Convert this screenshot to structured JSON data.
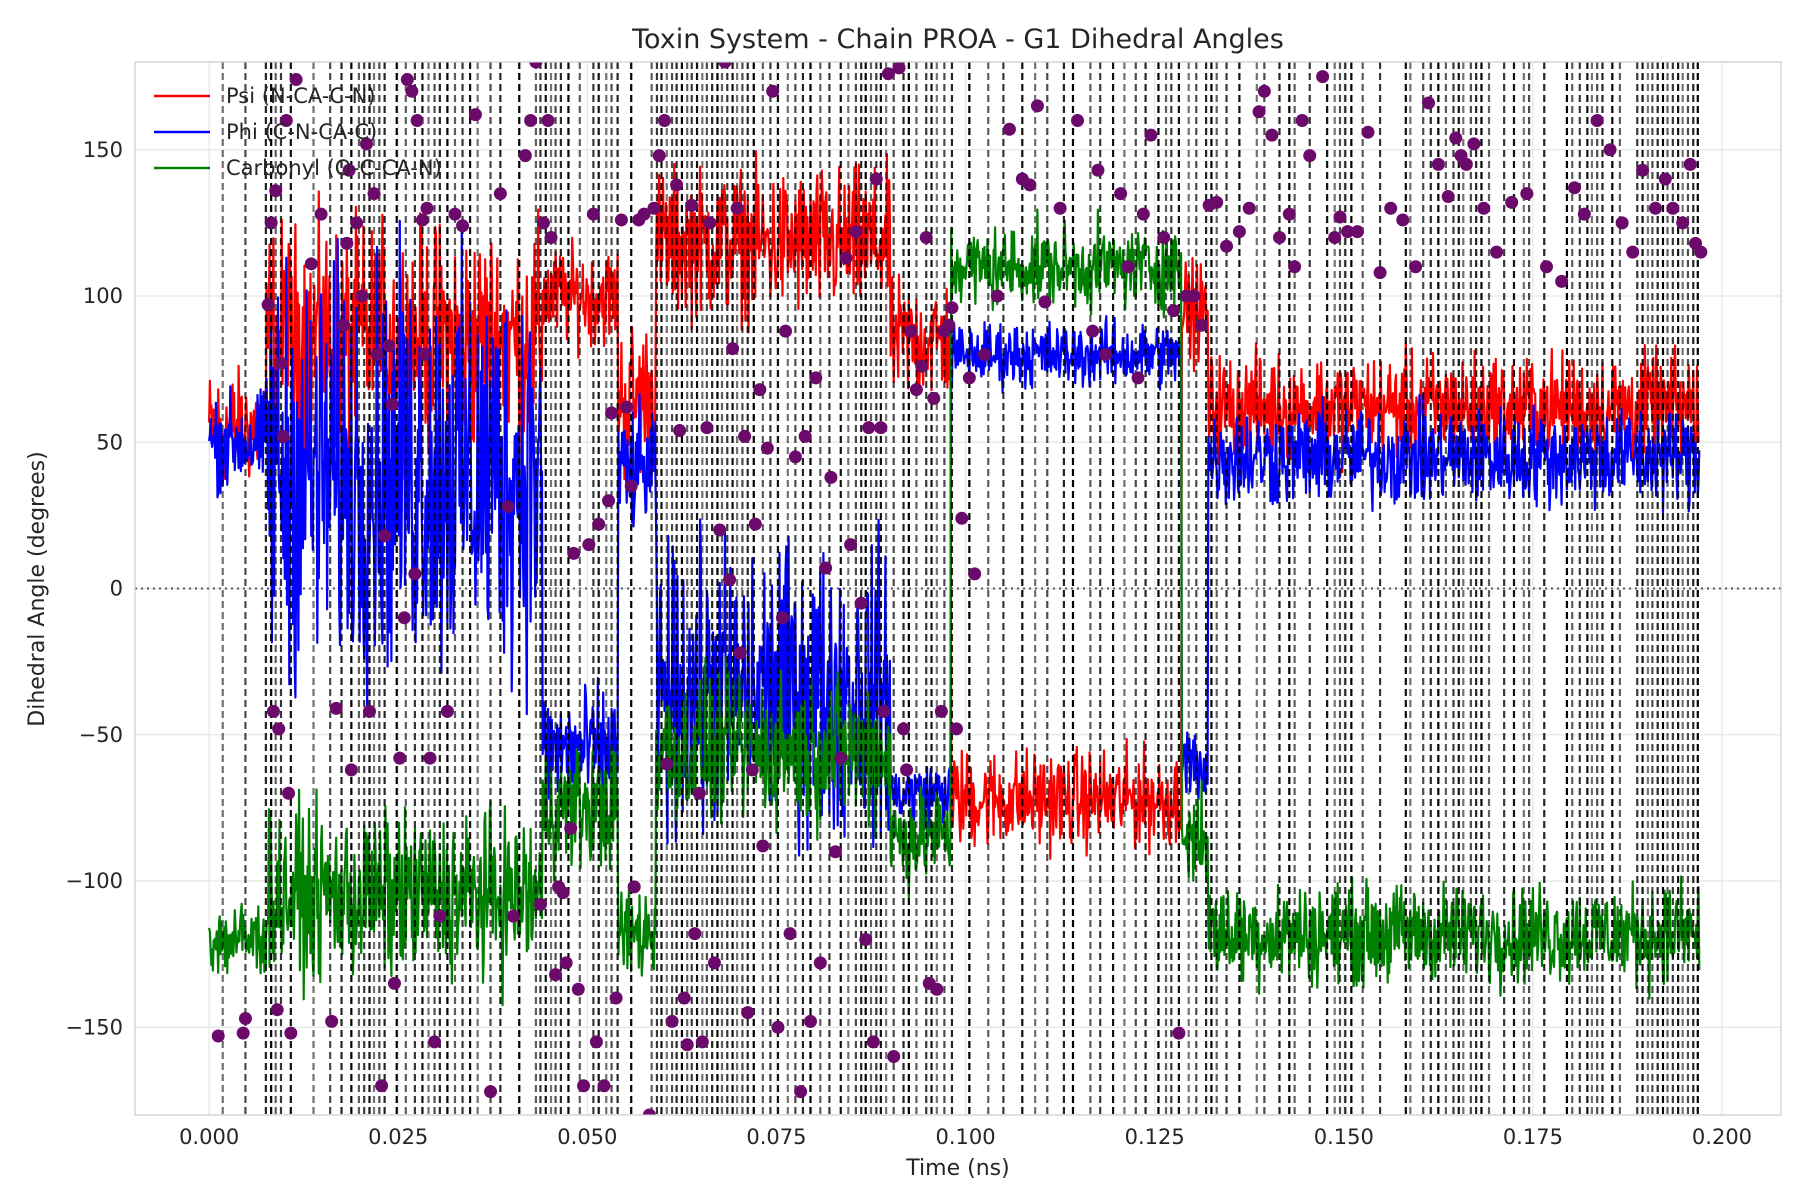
{
  "chart_data": {
    "type": "line",
    "title": "Toxin System - Chain PROA - G1 Dihedral Angles",
    "xlabel": "Time (ns)",
    "ylabel": "Dihedral Angle (degrees)",
    "xlim": [
      -0.0098,
      0.2078
    ],
    "ylim": [
      -180,
      180
    ],
    "xticks": [
      0.0,
      0.025,
      0.05,
      0.075,
      0.1,
      0.125,
      0.15,
      0.175,
      0.2
    ],
    "xtick_labels": [
      "0.000",
      "0.025",
      "0.050",
      "0.075",
      "0.100",
      "0.125",
      "0.150",
      "0.175",
      "0.200"
    ],
    "yticks": [
      -150,
      -100,
      -50,
      0,
      50,
      100,
      150
    ],
    "ytick_labels": [
      "−150",
      "−100",
      "−50",
      "0",
      "50",
      "100",
      "150"
    ],
    "grid": true,
    "legend_position": "top-left",
    "reference_line": {
      "y": 0,
      "style": "dotted",
      "color": "#555555"
    },
    "colors": {
      "psi": "#ff0000",
      "phi": "#0000ff",
      "carbonyl": "#008000",
      "markers": "#6b0a6b",
      "vlines": "#000000"
    },
    "series": [
      {
        "name": "Psi (N-CA-C-N)",
        "color": "#ff0000",
        "segments": [
          {
            "x": [
              0.0,
              0.0075
            ],
            "mean": 55,
            "noise": 14
          },
          {
            "x": [
              0.0075,
              0.044
            ],
            "mean": 85,
            "noise": 28
          },
          {
            "x": [
              0.044,
              0.054
            ],
            "mean": 100,
            "noise": 12
          },
          {
            "x": [
              0.054,
              0.059
            ],
            "mean": 65,
            "noise": 20
          },
          {
            "x": [
              0.059,
              0.09
            ],
            "mean": 118,
            "noise": 18
          },
          {
            "x": [
              0.09,
              0.098
            ],
            "mean": 85,
            "noise": 15
          },
          {
            "x": [
              0.098,
              0.1285
            ],
            "mean": -72,
            "noise": 12
          },
          {
            "x": [
              0.1285,
              0.132
            ],
            "mean": 95,
            "noise": 12
          },
          {
            "x": [
              0.132,
              0.197
            ],
            "mean": 62,
            "noise": 13
          }
        ]
      },
      {
        "name": "Phi (C-N-CA-C)",
        "color": "#0000ff",
        "segments": [
          {
            "x": [
              0.0,
              0.0075
            ],
            "mean": 50,
            "noise": 12
          },
          {
            "x": [
              0.0075,
              0.044
            ],
            "mean": 40,
            "noise": 50
          },
          {
            "x": [
              0.044,
              0.054
            ],
            "mean": -55,
            "noise": 15
          },
          {
            "x": [
              0.054,
              0.059
            ],
            "mean": 40,
            "noise": 15
          },
          {
            "x": [
              0.059,
              0.09
            ],
            "mean": -35,
            "noise": 35
          },
          {
            "x": [
              0.09,
              0.098
            ],
            "mean": -70,
            "noise": 8
          },
          {
            "x": [
              0.098,
              0.1285
            ],
            "mean": 80,
            "noise": 8
          },
          {
            "x": [
              0.1285,
              0.132
            ],
            "mean": -60,
            "noise": 10
          },
          {
            "x": [
              0.132,
              0.197
            ],
            "mean": 45,
            "noise": 12
          }
        ]
      },
      {
        "name": "Carbonyl (O-C-CA-N)",
        "color": "#008000",
        "segments": [
          {
            "x": [
              0.0,
              0.0075
            ],
            "mean": -120,
            "noise": 10
          },
          {
            "x": [
              0.0075,
              0.044
            ],
            "mean": -105,
            "noise": 20
          },
          {
            "x": [
              0.044,
              0.054
            ],
            "mean": -75,
            "noise": 15
          },
          {
            "x": [
              0.054,
              0.059
            ],
            "mean": -118,
            "noise": 12
          },
          {
            "x": [
              0.059,
              0.09
            ],
            "mean": -55,
            "noise": 18
          },
          {
            "x": [
              0.09,
              0.098
            ],
            "mean": -85,
            "noise": 12
          },
          {
            "x": [
              0.098,
              0.1285
            ],
            "mean": 110,
            "noise": 10
          },
          {
            "x": [
              0.1285,
              0.132
            ],
            "mean": -85,
            "noise": 12
          },
          {
            "x": [
              0.132,
              0.197
            ],
            "mean": -118,
            "noise": 12
          }
        ]
      }
    ],
    "transition_lines": [
      0.0018,
      0.0048,
      0.0075,
      0.0082,
      0.0088,
      0.0095,
      0.0108,
      0.0138,
      0.016,
      0.0175,
      0.0188,
      0.0198,
      0.0205,
      0.0212,
      0.0218,
      0.0225,
      0.0232,
      0.0248,
      0.026,
      0.0272,
      0.0282,
      0.029,
      0.0298,
      0.0305,
      0.0315,
      0.0325,
      0.0335,
      0.0345,
      0.0355,
      0.0372,
      0.0385,
      0.041,
      0.0432,
      0.0438,
      0.0445,
      0.0452,
      0.0458,
      0.0465,
      0.0475,
      0.049,
      0.0508,
      0.0515,
      0.0525,
      0.0532,
      0.054,
      0.0558,
      0.0585,
      0.0592,
      0.0598,
      0.0605,
      0.0612,
      0.0618,
      0.0625,
      0.0632,
      0.0638,
      0.0645,
      0.0652,
      0.0658,
      0.0665,
      0.0672,
      0.0678,
      0.0685,
      0.0692,
      0.0698,
      0.0705,
      0.0712,
      0.072,
      0.0732,
      0.0742,
      0.0752,
      0.0765,
      0.0775,
      0.0785,
      0.0795,
      0.0808,
      0.082,
      0.0835,
      0.0845,
      0.0855,
      0.0862,
      0.0868,
      0.0875,
      0.0882,
      0.0888,
      0.0895,
      0.0905,
      0.0918,
      0.0925,
      0.0935,
      0.0948,
      0.0955,
      0.0962,
      0.0972,
      0.0982,
      0.1005,
      0.103,
      0.105,
      0.1075,
      0.1092,
      0.1108,
      0.113,
      0.1142,
      0.1165,
      0.1178,
      0.1195,
      0.121,
      0.1225,
      0.1238,
      0.1255,
      0.1265,
      0.1272,
      0.1282,
      0.1295,
      0.1305,
      0.1318,
      0.1325,
      0.1332,
      0.1345,
      0.1362,
      0.1385,
      0.1395,
      0.1415,
      0.1428,
      0.1435,
      0.1455,
      0.1478,
      0.1488,
      0.1495,
      0.1502,
      0.151,
      0.1525,
      0.1548,
      0.1582,
      0.1588,
      0.1605,
      0.1615,
      0.1625,
      0.1635,
      0.1645,
      0.1652,
      0.1658,
      0.1668,
      0.1675,
      0.1682,
      0.1692,
      0.1712,
      0.1725,
      0.1738,
      0.1745,
      0.1765,
      0.1795,
      0.1802,
      0.1812,
      0.1822,
      0.1828,
      0.1835,
      0.1842,
      0.1855,
      0.1865,
      0.1888,
      0.1895,
      0.1902,
      0.1908,
      0.1915,
      0.1922,
      0.1928,
      0.1935,
      0.1942,
      0.1948,
      0.1955,
      0.1962,
      0.1968
    ],
    "transition_points": [
      [
        0.0012,
        -153
      ],
      [
        0.0045,
        -152
      ],
      [
        0.0048,
        -147
      ],
      [
        0.0078,
        97
      ],
      [
        0.0082,
        125
      ],
      [
        0.0085,
        -42
      ],
      [
        0.0088,
        136
      ],
      [
        0.009,
        -144
      ],
      [
        0.0092,
        -48
      ],
      [
        0.0095,
        77
      ],
      [
        0.0098,
        52
      ],
      [
        0.0102,
        160
      ],
      [
        0.0105,
        -70
      ],
      [
        0.0108,
        -152
      ],
      [
        0.0115,
        174
      ],
      [
        0.0135,
        111
      ],
      [
        0.0148,
        128
      ],
      [
        0.0162,
        -148
      ],
      [
        0.0168,
        -41
      ],
      [
        0.0178,
        90
      ],
      [
        0.0182,
        118
      ],
      [
        0.0185,
        143
      ],
      [
        0.0188,
        -62
      ],
      [
        0.0195,
        125
      ],
      [
        0.0202,
        100
      ],
      [
        0.0208,
        152
      ],
      [
        0.0212,
        -42
      ],
      [
        0.0218,
        135
      ],
      [
        0.0222,
        80
      ],
      [
        0.0228,
        -170
      ],
      [
        0.0232,
        18
      ],
      [
        0.0238,
        83
      ],
      [
        0.0242,
        63
      ],
      [
        0.0245,
        -135
      ],
      [
        0.0252,
        -58
      ],
      [
        0.0258,
        -10
      ],
      [
        0.0262,
        174
      ],
      [
        0.0268,
        170
      ],
      [
        0.0272,
        5
      ],
      [
        0.0275,
        160
      ],
      [
        0.0282,
        126
      ],
      [
        0.0285,
        80
      ],
      [
        0.0288,
        130
      ],
      [
        0.0292,
        -58
      ],
      [
        0.0298,
        -155
      ],
      [
        0.0305,
        -112
      ],
      [
        0.0315,
        -42
      ],
      [
        0.0325,
        128
      ],
      [
        0.0335,
        124
      ],
      [
        0.0352,
        162
      ],
      [
        0.0372,
        -172
      ],
      [
        0.0385,
        135
      ],
      [
        0.0395,
        28
      ],
      [
        0.0402,
        -112
      ],
      [
        0.0418,
        148
      ],
      [
        0.0425,
        160
      ],
      [
        0.0432,
        180
      ],
      [
        0.0438,
        -108
      ],
      [
        0.0442,
        125
      ],
      [
        0.0448,
        160
      ],
      [
        0.0452,
        120
      ],
      [
        0.0458,
        -132
      ],
      [
        0.0462,
        -102
      ],
      [
        0.0468,
        -104
      ],
      [
        0.0472,
        -128
      ],
      [
        0.0478,
        -82
      ],
      [
        0.0482,
        12
      ],
      [
        0.0488,
        -137
      ],
      [
        0.0495,
        -170
      ],
      [
        0.0502,
        15
      ],
      [
        0.0508,
        128
      ],
      [
        0.0512,
        -155
      ],
      [
        0.0515,
        22
      ],
      [
        0.0522,
        -170
      ],
      [
        0.0528,
        30
      ],
      [
        0.0532,
        60
      ],
      [
        0.0538,
        -140
      ],
      [
        0.0545,
        126
      ],
      [
        0.0552,
        62
      ],
      [
        0.0558,
        35
      ],
      [
        0.0562,
        -102
      ],
      [
        0.0568,
        126
      ],
      [
        0.0575,
        128
      ],
      [
        0.0582,
        -180
      ],
      [
        0.0588,
        130
      ],
      [
        0.0595,
        148
      ],
      [
        0.0602,
        160
      ],
      [
        0.0605,
        -60
      ],
      [
        0.0612,
        -148
      ],
      [
        0.0618,
        138
      ],
      [
        0.0622,
        54
      ],
      [
        0.0628,
        -140
      ],
      [
        0.0632,
        -156
      ],
      [
        0.0638,
        131
      ],
      [
        0.0642,
        -118
      ],
      [
        0.0648,
        -70
      ],
      [
        0.0652,
        -155
      ],
      [
        0.0658,
        55
      ],
      [
        0.0662,
        125
      ],
      [
        0.0668,
        -128
      ],
      [
        0.0675,
        20
      ],
      [
        0.0682,
        180
      ],
      [
        0.0688,
        3
      ],
      [
        0.0692,
        82
      ],
      [
        0.0698,
        130
      ],
      [
        0.0702,
        -22
      ],
      [
        0.0708,
        52
      ],
      [
        0.0712,
        -145
      ],
      [
        0.0718,
        -62
      ],
      [
        0.0722,
        22
      ],
      [
        0.0728,
        68
      ],
      [
        0.0732,
        -88
      ],
      [
        0.0738,
        48
      ],
      [
        0.0745,
        170
      ],
      [
        0.0752,
        -150
      ],
      [
        0.0758,
        -10
      ],
      [
        0.0762,
        88
      ],
      [
        0.0768,
        -118
      ],
      [
        0.0775,
        45
      ],
      [
        0.0782,
        -172
      ],
      [
        0.0788,
        52
      ],
      [
        0.0795,
        -148
      ],
      [
        0.0802,
        72
      ],
      [
        0.0808,
        -128
      ],
      [
        0.0815,
        7
      ],
      [
        0.0822,
        38
      ],
      [
        0.0828,
        -90
      ],
      [
        0.0835,
        -58
      ],
      [
        0.0842,
        113
      ],
      [
        0.0848,
        15
      ],
      [
        0.0855,
        122
      ],
      [
        0.0862,
        -5
      ],
      [
        0.0868,
        -120
      ],
      [
        0.0872,
        55
      ],
      [
        0.0878,
        -155
      ],
      [
        0.0882,
        140
      ],
      [
        0.0888,
        55
      ],
      [
        0.0892,
        -42
      ],
      [
        0.0898,
        176
      ],
      [
        0.0905,
        -160
      ],
      [
        0.0912,
        178
      ],
      [
        0.0918,
        -48
      ],
      [
        0.0922,
        -62
      ],
      [
        0.0928,
        88
      ],
      [
        0.0935,
        68
      ],
      [
        0.0942,
        76
      ],
      [
        0.0948,
        120
      ],
      [
        0.0952,
        -135
      ],
      [
        0.0958,
        65
      ],
      [
        0.0962,
        -137
      ],
      [
        0.0968,
        -42
      ],
      [
        0.0972,
        88
      ],
      [
        0.0978,
        90
      ],
      [
        0.0982,
        96
      ],
      [
        0.0988,
        -48
      ],
      [
        0.0995,
        24
      ],
      [
        0.1005,
        72
      ],
      [
        0.1012,
        5
      ],
      [
        0.1025,
        80
      ],
      [
        0.1042,
        100
      ],
      [
        0.1058,
        157
      ],
      [
        0.1075,
        140
      ],
      [
        0.1085,
        138
      ],
      [
        0.1095,
        165
      ],
      [
        0.1105,
        98
      ],
      [
        0.1125,
        130
      ],
      [
        0.1148,
        160
      ],
      [
        0.1168,
        88
      ],
      [
        0.1175,
        143
      ],
      [
        0.1185,
        80
      ],
      [
        0.1205,
        135
      ],
      [
        0.1215,
        110
      ],
      [
        0.1228,
        72
      ],
      [
        0.1235,
        128
      ],
      [
        0.1245,
        155
      ],
      [
        0.1262,
        120
      ],
      [
        0.1275,
        95
      ],
      [
        0.1282,
        -152
      ],
      [
        0.1292,
        100
      ],
      [
        0.1302,
        100
      ],
      [
        0.1312,
        90
      ],
      [
        0.1322,
        131
      ],
      [
        0.1332,
        132
      ],
      [
        0.1345,
        117
      ],
      [
        0.1362,
        122
      ],
      [
        0.1375,
        130
      ],
      [
        0.1388,
        163
      ],
      [
        0.1395,
        170
      ],
      [
        0.1405,
        155
      ],
      [
        0.1415,
        120
      ],
      [
        0.1428,
        128
      ],
      [
        0.1435,
        110
      ],
      [
        0.1445,
        160
      ],
      [
        0.1455,
        148
      ],
      [
        0.1472,
        175
      ],
      [
        0.1488,
        120
      ],
      [
        0.1495,
        127
      ],
      [
        0.1505,
        122
      ],
      [
        0.1518,
        122
      ],
      [
        0.1532,
        156
      ],
      [
        0.1548,
        108
      ],
      [
        0.1562,
        130
      ],
      [
        0.1578,
        126
      ],
      [
        0.1595,
        110
      ],
      [
        0.1612,
        166
      ],
      [
        0.1625,
        145
      ],
      [
        0.1638,
        134
      ],
      [
        0.1648,
        154
      ],
      [
        0.1655,
        148
      ],
      [
        0.1662,
        145
      ],
      [
        0.1672,
        152
      ],
      [
        0.1685,
        130
      ],
      [
        0.1702,
        115
      ],
      [
        0.1722,
        132
      ],
      [
        0.1742,
        135
      ],
      [
        0.1768,
        110
      ],
      [
        0.1788,
        105
      ],
      [
        0.1805,
        137
      ],
      [
        0.1818,
        128
      ],
      [
        0.1835,
        160
      ],
      [
        0.1852,
        150
      ],
      [
        0.1868,
        125
      ],
      [
        0.1882,
        115
      ],
      [
        0.1895,
        143
      ],
      [
        0.1912,
        130
      ],
      [
        0.1925,
        140
      ],
      [
        0.1935,
        130
      ],
      [
        0.1948,
        125
      ],
      [
        0.1958,
        145
      ],
      [
        0.1965,
        118
      ],
      [
        0.1972,
        115
      ]
    ]
  }
}
